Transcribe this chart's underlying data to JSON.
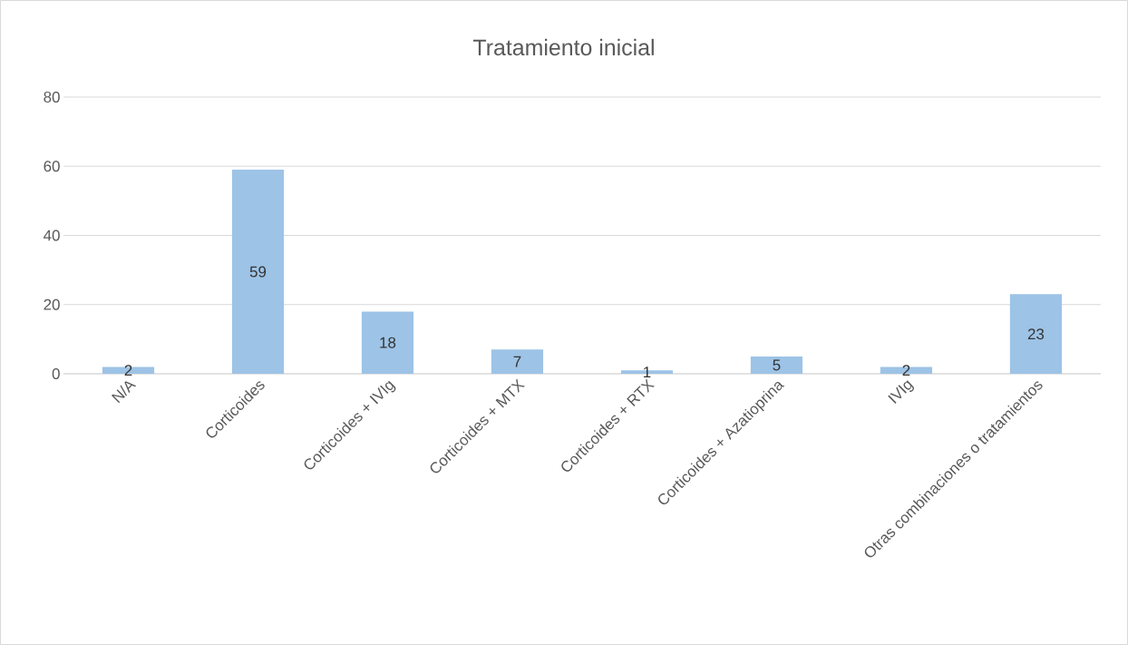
{
  "chart_data": {
    "type": "bar",
    "title": "Tratamiento inicial",
    "categories": [
      "N/A",
      "Corticoides",
      "Corticoides + IVIg",
      "Corticoides + MTX",
      "Corticoides + RTX",
      "Corticoides + Azatioprina",
      "IVIg",
      "Otras combinaciones o tratamientos"
    ],
    "values": [
      2,
      59,
      18,
      7,
      1,
      5,
      2,
      23
    ],
    "color": "#9dc3e6",
    "ylim": [
      0,
      80
    ],
    "yticks": [
      0,
      20,
      40,
      60,
      80
    ],
    "grid": "y",
    "data_labels": true
  }
}
